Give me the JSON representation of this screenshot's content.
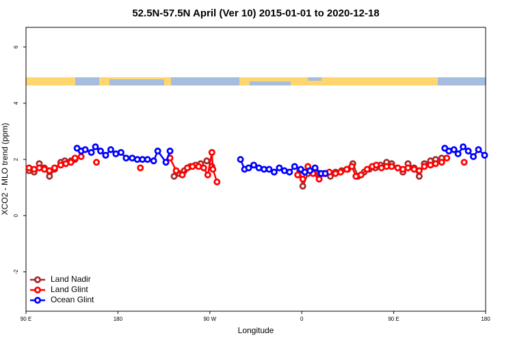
{
  "chart_data": {
    "type": "line",
    "title": "52.5N-57.5N April (Ver 10)   2015-01-01 to 2020-12-18",
    "x_label": "Longitude",
    "y_label": "XCO2 - MLO trend (ppm)",
    "xlim": [
      90,
      540
    ],
    "ylim": [
      -3.4,
      6.7
    ],
    "xticks": [
      {
        "value": 90,
        "label": "90 E"
      },
      180,
      {
        "value": 270,
        "label": "90 W"
      },
      {
        "value": 360,
        "label": "0"
      },
      {
        "value": 450,
        "label": "90 E"
      },
      {
        "value": 540,
        "label": "180"
      }
    ],
    "yticks": [
      -2,
      0,
      2,
      4,
      6
    ],
    "legend": "bottom-left",
    "series": [
      {
        "name": "Land Nadir",
        "color": "#a52a2a",
        "x": [
          93,
          98,
          103,
          108,
          113,
          118,
          124,
          128,
          134,
          138,
          null,
          235,
          240,
          245,
          251,
          256,
          261,
          267,
          272,
          null,
          358,
          361,
          366,
          371,
          377,
          383,
          388,
          393,
          399,
          405,
          410,
          415,
          421,
          426,
          432,
          437,
          443,
          448,
          454,
          459,
          464,
          470,
          475,
          480,
          486,
          491,
          497
        ],
        "values": [
          1.6,
          1.55,
          1.85,
          1.7,
          1.4,
          1.65,
          1.9,
          1.95,
          1.95,
          2.0,
          null,
          1.4,
          1.5,
          1.6,
          1.75,
          1.8,
          1.85,
          1.95,
          1.75,
          null,
          1.6,
          1.05,
          1.5,
          1.55,
          1.5,
          1.5,
          1.4,
          1.55,
          1.6,
          1.65,
          1.85,
          1.4,
          1.55,
          1.65,
          1.7,
          1.8,
          1.9,
          1.85,
          1.7,
          1.55,
          1.85,
          1.7,
          1.4,
          1.85,
          1.95,
          2.0,
          2.05
        ]
      },
      {
        "name": "Land Glint",
        "color": "#ff0000",
        "x": [
          93,
          98,
          103,
          108,
          113,
          118,
          124,
          129,
          134,
          138,
          144,
          null,
          159,
          null,
          202,
          null,
          231,
          237,
          243,
          248,
          253,
          259,
          264,
          268,
          272,
          273,
          277,
          null,
          356,
          361,
          366,
          371,
          377,
          382,
          387,
          393,
          398,
          404,
          409,
          413,
          418,
          424,
          429,
          433,
          438,
          443,
          448,
          454,
          459,
          464,
          470,
          475,
          480,
          486,
          491,
          497,
          502,
          null,
          519
        ],
        "values": [
          1.7,
          1.65,
          1.7,
          1.65,
          1.6,
          1.7,
          1.8,
          1.85,
          1.9,
          2.05,
          2.1,
          null,
          1.9,
          null,
          1.7,
          null,
          2.05,
          1.6,
          1.45,
          1.7,
          1.75,
          1.75,
          1.7,
          1.45,
          2.25,
          1.65,
          1.2,
          null,
          1.45,
          1.3,
          1.75,
          1.5,
          1.3,
          1.5,
          1.55,
          1.5,
          1.55,
          1.65,
          1.75,
          1.4,
          1.45,
          1.65,
          1.75,
          1.8,
          1.7,
          1.75,
          1.75,
          1.7,
          1.65,
          1.7,
          1.65,
          1.6,
          1.75,
          1.8,
          1.85,
          1.9,
          2.05,
          null,
          1.9
        ]
      },
      {
        "name": "Ocean Glint",
        "color": "#0000ff",
        "x": [
          140,
          144,
          148,
          154,
          158,
          163,
          168,
          173,
          178,
          183,
          188,
          194,
          199,
          204,
          209,
          215,
          219,
          227,
          231,
          null,
          300,
          304,
          308,
          313,
          318,
          323,
          328,
          333,
          338,
          343,
          348,
          353,
          359,
          363,
          368,
          373,
          379,
          383,
          null,
          500,
          504,
          509,
          513,
          518,
          523,
          528,
          533,
          539
        ],
        "values": [
          2.4,
          2.3,
          2.35,
          2.25,
          2.45,
          2.3,
          2.15,
          2.35,
          2.2,
          2.25,
          2.05,
          2.05,
          2.0,
          2.0,
          2.0,
          1.95,
          2.3,
          1.9,
          2.3,
          null,
          2.0,
          1.65,
          1.7,
          1.8,
          1.7,
          1.65,
          1.65,
          1.55,
          1.7,
          1.6,
          1.55,
          1.75,
          1.65,
          1.55,
          1.6,
          1.7,
          1.5,
          1.5,
          null,
          2.4,
          2.3,
          2.35,
          2.2,
          2.45,
          2.3,
          2.1,
          2.35,
          2.15
        ]
      }
    ]
  }
}
